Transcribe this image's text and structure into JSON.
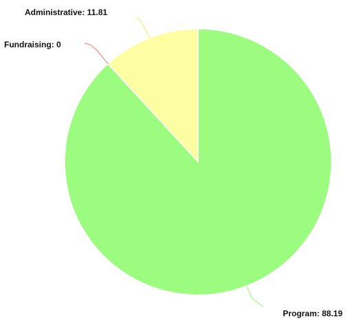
{
  "chart_data": {
    "type": "pie",
    "title": "",
    "start": "12 o'clock",
    "direction": "clockwise",
    "slices": [
      {
        "label": "Program",
        "value": 88.19,
        "display": "Program: 88.19",
        "color": "#9cfc7f",
        "leader_color": "#9cfc7f"
      },
      {
        "label": "Fundraising",
        "value": 0,
        "display": "Fundraising: 0",
        "color": "#f4a08a",
        "leader_color": "#f28c78"
      },
      {
        "label": "Administrative",
        "value": 11.81,
        "display": "Administrative: 11.81",
        "color": "#fdfda2",
        "leader_color": "#f0f07a"
      }
    ],
    "legend": "none",
    "grid": false
  }
}
